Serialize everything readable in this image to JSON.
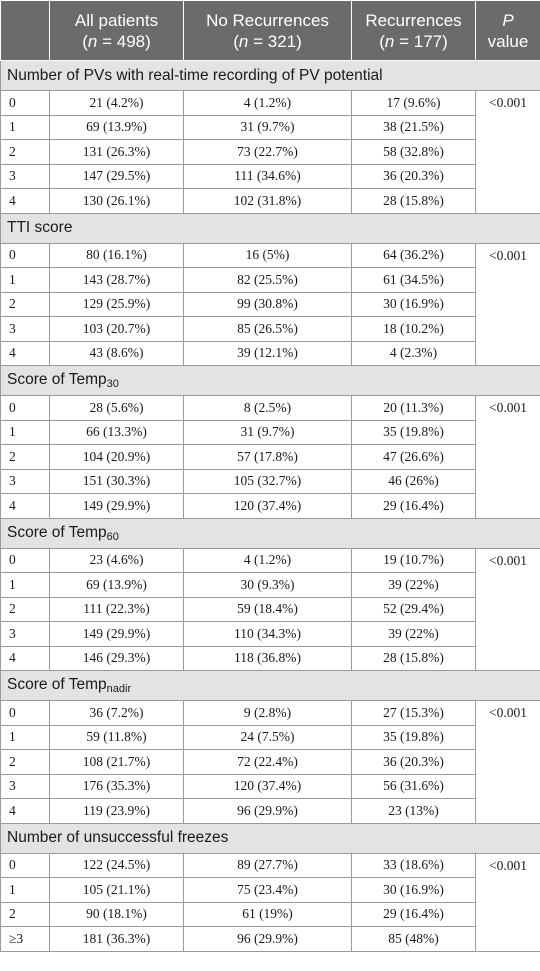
{
  "header": {
    "col0": "",
    "col1_title": "All patients",
    "col1_n": "498",
    "col2_title": "No Recurrences",
    "col2_n": "321",
    "col3_title": "Recurrences",
    "col3_n": "177",
    "col4_p": "P",
    "col4_value": "value",
    "n_label": "n",
    "eq": " = "
  },
  "sections": [
    {
      "title": "Number of PVs with real-time recording of PV potential",
      "p_value": "<0.001",
      "rows": [
        {
          "level": "0",
          "all": "21 (4.2%)",
          "no_rec": "4 (1.2%)",
          "rec": "17 (9.6%)"
        },
        {
          "level": "1",
          "all": "69 (13.9%)",
          "no_rec": "31 (9.7%)",
          "rec": "38 (21.5%)"
        },
        {
          "level": "2",
          "all": "131 (26.3%)",
          "no_rec": "73 (22.7%)",
          "rec": "58 (32.8%)"
        },
        {
          "level": "3",
          "all": "147 (29.5%)",
          "no_rec": "111 (34.6%)",
          "rec": "36 (20.3%)"
        },
        {
          "level": "4",
          "all": "130 (26.1%)",
          "no_rec": "102 (31.8%)",
          "rec": "28 (15.8%)"
        }
      ]
    },
    {
      "title": "TTI score",
      "p_value": "<0.001",
      "rows": [
        {
          "level": "0",
          "all": "80 (16.1%)",
          "no_rec": "16 (5%)",
          "rec": "64 (36.2%)"
        },
        {
          "level": "1",
          "all": "143 (28.7%)",
          "no_rec": "82 (25.5%)",
          "rec": "61 (34.5%)"
        },
        {
          "level": "2",
          "all": "129 (25.9%)",
          "no_rec": "99 (30.8%)",
          "rec": "30 (16.9%)"
        },
        {
          "level": "3",
          "all": "103 (20.7%)",
          "no_rec": "85 (26.5%)",
          "rec": "18 (10.2%)"
        },
        {
          "level": "4",
          "all": "43 (8.6%)",
          "no_rec": "39 (12.1%)",
          "rec": "4 (2.3%)"
        }
      ]
    },
    {
      "title": "Score of Temp",
      "title_sub": "30",
      "p_value": "<0.001",
      "rows": [
        {
          "level": "0",
          "all": "28 (5.6%)",
          "no_rec": "8 (2.5%)",
          "rec": "20 (11.3%)"
        },
        {
          "level": "1",
          "all": "66 (13.3%)",
          "no_rec": "31 (9.7%)",
          "rec": "35 (19.8%)"
        },
        {
          "level": "2",
          "all": "104 (20.9%)",
          "no_rec": "57 (17.8%)",
          "rec": "47 (26.6%)"
        },
        {
          "level": "3",
          "all": "151 (30.3%)",
          "no_rec": "105 (32.7%)",
          "rec": "46 (26%)"
        },
        {
          "level": "4",
          "all": "149 (29.9%)",
          "no_rec": "120 (37.4%)",
          "rec": "29 (16.4%)"
        }
      ]
    },
    {
      "title": "Score of Temp",
      "title_sub": "60",
      "p_value": "<0.001",
      "rows": [
        {
          "level": "0",
          "all": "23 (4.6%)",
          "no_rec": "4 (1.2%)",
          "rec": "19 (10.7%)"
        },
        {
          "level": "1",
          "all": "69 (13.9%)",
          "no_rec": "30 (9.3%)",
          "rec": "39 (22%)"
        },
        {
          "level": "2",
          "all": "111 (22.3%)",
          "no_rec": "59 (18.4%)",
          "rec": "52 (29.4%)"
        },
        {
          "level": "3",
          "all": "149 (29.9%)",
          "no_rec": "110 (34.3%)",
          "rec": "39 (22%)"
        },
        {
          "level": "4",
          "all": "146 (29.3%)",
          "no_rec": "118 (36.8%)",
          "rec": "28 (15.8%)"
        }
      ]
    },
    {
      "title": "Score of Temp",
      "title_sub": "nadir",
      "p_value": "<0.001",
      "rows": [
        {
          "level": "0",
          "all": "36 (7.2%)",
          "no_rec": "9 (2.8%)",
          "rec": "27 (15.3%)"
        },
        {
          "level": "1",
          "all": "59 (11.8%)",
          "no_rec": "24 (7.5%)",
          "rec": "35 (19.8%)"
        },
        {
          "level": "2",
          "all": "108 (21.7%)",
          "no_rec": "72 (22.4%)",
          "rec": "36 (20.3%)"
        },
        {
          "level": "3",
          "all": "176 (35.3%)",
          "no_rec": "120 (37.4%)",
          "rec": "56 (31.6%)"
        },
        {
          "level": "4",
          "all": "119 (23.9%)",
          "no_rec": "96 (29.9%)",
          "rec": "23 (13%)"
        }
      ]
    },
    {
      "title": "Number of unsuccessful freezes",
      "p_value": "<0.001",
      "rows": [
        {
          "level": "0",
          "all": "122 (24.5%)",
          "no_rec": "89 (27.7%)",
          "rec": "33 (18.6%)"
        },
        {
          "level": "1",
          "all": "105 (21.1%)",
          "no_rec": "75 (23.4%)",
          "rec": "30 (16.9%)"
        },
        {
          "level": "2",
          "all": "90 (18.1%)",
          "no_rec": "61 (19%)",
          "rec": "29 (16.4%)"
        },
        {
          "level": "≥3",
          "all": "181 (36.3%)",
          "no_rec": "96 (29.9%)",
          "rec": "85 (48%)"
        }
      ]
    }
  ]
}
